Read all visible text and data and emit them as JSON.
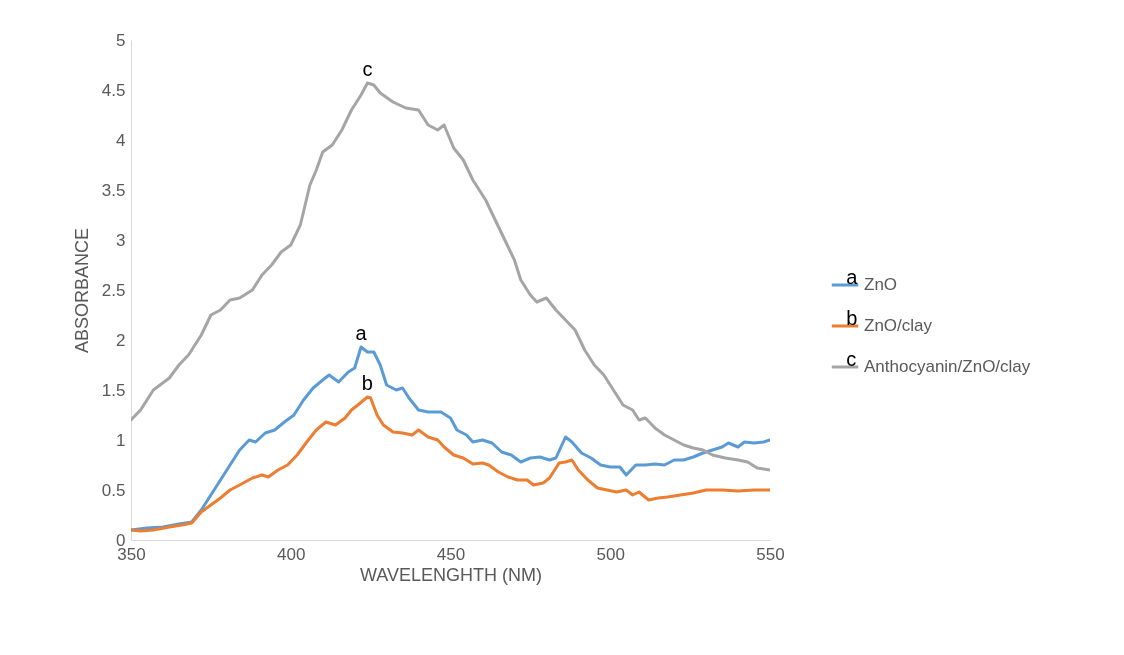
{
  "chart_data": {
    "type": "line",
    "xlabel": "WAVELENGHTH (NM)",
    "ylabel": "ABSORBANCE",
    "xlim": [
      350,
      550
    ],
    "xticks": [
      350,
      400,
      450,
      500,
      550
    ],
    "ylim": [
      0,
      5
    ],
    "yticks": [
      0,
      0.5,
      1,
      1.5,
      2,
      2.5,
      3,
      3.5,
      4,
      4.5,
      5
    ],
    "grid": false,
    "legend": "right",
    "marker": "none",
    "line_style": "solid",
    "series": [
      {
        "name": "ZnO",
        "color": "#5b9bd5",
        "x": [
          350,
          355,
          360,
          365,
          369,
          372,
          375,
          378,
          381,
          384,
          387,
          389,
          392,
          395,
          398,
          401,
          404,
          407,
          410,
          412,
          415,
          418,
          420,
          422,
          424,
          426,
          428,
          430,
          433,
          435,
          437,
          440,
          443,
          447,
          450,
          452,
          455,
          457,
          460,
          463,
          466,
          469,
          472,
          475,
          478,
          481,
          483,
          486,
          488,
          491,
          494,
          497,
          500,
          503,
          505,
          508,
          511,
          514,
          517,
          520,
          523,
          526,
          529,
          532,
          535,
          537,
          540,
          542,
          545,
          548,
          550
        ],
        "values": [
          0.1,
          0.12,
          0.13,
          0.16,
          0.18,
          0.3,
          0.45,
          0.6,
          0.75,
          0.9,
          1.0,
          0.98,
          1.07,
          1.1,
          1.18,
          1.25,
          1.4,
          1.52,
          1.6,
          1.65,
          1.58,
          1.68,
          1.72,
          1.93,
          1.88,
          1.88,
          1.75,
          1.55,
          1.5,
          1.52,
          1.42,
          1.3,
          1.28,
          1.28,
          1.22,
          1.1,
          1.05,
          0.98,
          1.0,
          0.97,
          0.88,
          0.85,
          0.78,
          0.82,
          0.83,
          0.8,
          0.82,
          1.03,
          0.98,
          0.87,
          0.82,
          0.75,
          0.73,
          0.73,
          0.65,
          0.75,
          0.75,
          0.76,
          0.75,
          0.8,
          0.8,
          0.83,
          0.87,
          0.9,
          0.93,
          0.97,
          0.93,
          0.98,
          0.97,
          0.98,
          1.0
        ]
      },
      {
        "name": "ZnO/clay",
        "color": "#ed7d31",
        "x": [
          350,
          353,
          357,
          362,
          366,
          369,
          372,
          375,
          378,
          381,
          384,
          388,
          391,
          393,
          396,
          399,
          402,
          405,
          408,
          411,
          414,
          417,
          419,
          421,
          424,
          425,
          427,
          429,
          432,
          435,
          438,
          440,
          443,
          446,
          448,
          451,
          454,
          457,
          460,
          462,
          465,
          468,
          471,
          474,
          476,
          479,
          481,
          484,
          486,
          488,
          490,
          493,
          496,
          499,
          502,
          505,
          507,
          509,
          512,
          515,
          518,
          522,
          526,
          530,
          535,
          540,
          545,
          550
        ],
        "values": [
          0.1,
          0.09,
          0.1,
          0.13,
          0.15,
          0.17,
          0.28,
          0.35,
          0.42,
          0.5,
          0.55,
          0.62,
          0.65,
          0.63,
          0.7,
          0.75,
          0.85,
          0.98,
          1.1,
          1.18,
          1.15,
          1.22,
          1.3,
          1.35,
          1.43,
          1.42,
          1.25,
          1.15,
          1.08,
          1.07,
          1.05,
          1.1,
          1.03,
          1.0,
          0.93,
          0.85,
          0.82,
          0.76,
          0.77,
          0.75,
          0.68,
          0.63,
          0.6,
          0.6,
          0.55,
          0.57,
          0.62,
          0.77,
          0.78,
          0.8,
          0.7,
          0.6,
          0.52,
          0.5,
          0.48,
          0.5,
          0.45,
          0.48,
          0.4,
          0.42,
          0.43,
          0.45,
          0.47,
          0.5,
          0.5,
          0.49,
          0.5,
          0.5
        ]
      },
      {
        "name": "Anthocyanin/ZnO/clay",
        "color": "#a5a5a5",
        "x": [
          350,
          353,
          357,
          362,
          365,
          368,
          372,
          375,
          378,
          381,
          384,
          388,
          391,
          394,
          397,
          400,
          403,
          406,
          408,
          410,
          413,
          416,
          419,
          422,
          424,
          426,
          428,
          432,
          436,
          440,
          443,
          446,
          448,
          451,
          454,
          457,
          461,
          464,
          467,
          470,
          472,
          475,
          477,
          480,
          483,
          486,
          489,
          492,
          495,
          498,
          501,
          504,
          507,
          509,
          511,
          514,
          517,
          520,
          523,
          526,
          529,
          532,
          536,
          540,
          543,
          546,
          550
        ],
        "values": [
          1.2,
          1.3,
          1.5,
          1.62,
          1.75,
          1.85,
          2.05,
          2.25,
          2.3,
          2.4,
          2.42,
          2.5,
          2.65,
          2.75,
          2.88,
          2.95,
          3.15,
          3.55,
          3.7,
          3.88,
          3.95,
          4.1,
          4.3,
          4.45,
          4.57,
          4.55,
          4.47,
          4.38,
          4.32,
          4.3,
          4.15,
          4.1,
          4.15,
          3.92,
          3.8,
          3.6,
          3.4,
          3.2,
          3.0,
          2.8,
          2.6,
          2.45,
          2.38,
          2.42,
          2.3,
          2.2,
          2.1,
          1.9,
          1.75,
          1.65,
          1.5,
          1.35,
          1.3,
          1.2,
          1.22,
          1.12,
          1.05,
          1.0,
          0.95,
          0.92,
          0.9,
          0.85,
          0.82,
          0.8,
          0.78,
          0.72,
          0.7
        ]
      }
    ],
    "annotations": [
      "a",
      "b",
      "c",
      "a",
      "b",
      "c"
    ]
  }
}
